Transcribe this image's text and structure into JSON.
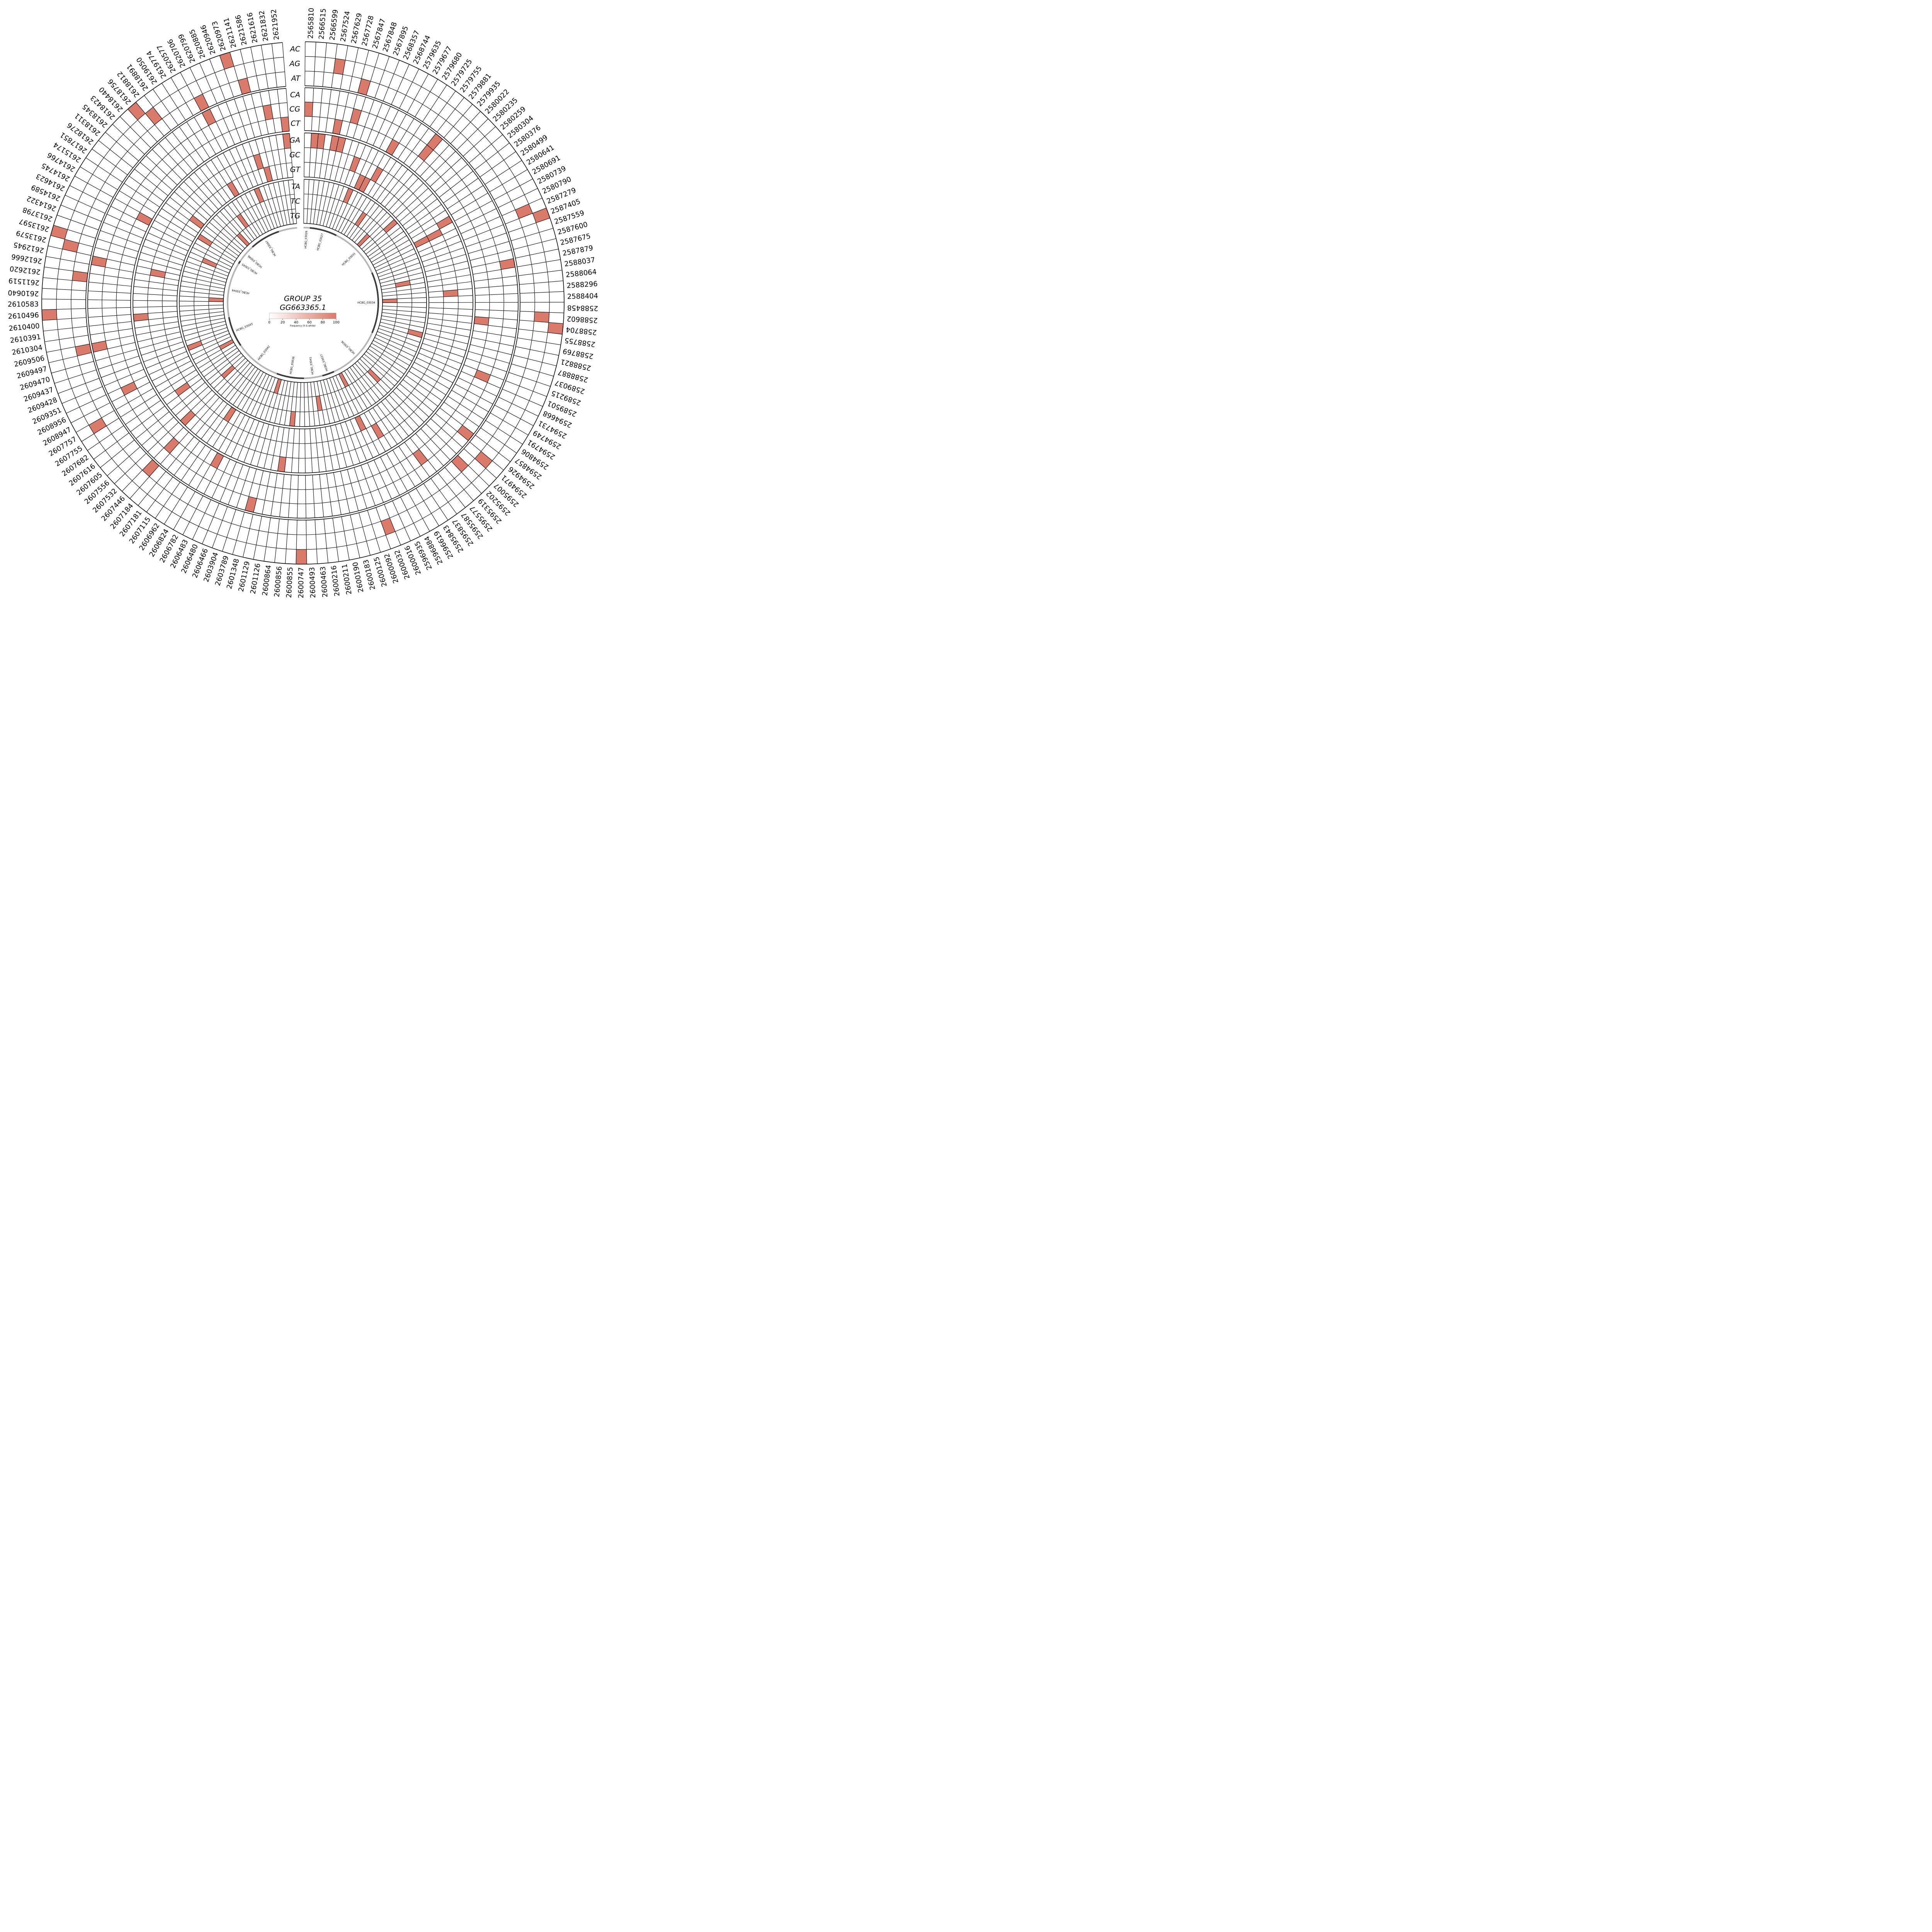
{
  "chart_data": {
    "type": "heatmap",
    "layout": "circular",
    "title": "GROUP 35",
    "subtitle": "GG663365.1",
    "colorbar": {
      "caption": "Frequency (0 is white)",
      "ticks": [
        "0",
        "20",
        "40",
        "60",
        "80",
        "100"
      ],
      "min": 0,
      "max": 100,
      "color_low": "#ffffff",
      "color_high": "#d97a6a"
    },
    "cell_color": "#d97a6a",
    "groups": [
      [
        "AC",
        "AG",
        "AT"
      ],
      [
        "CA",
        "CG",
        "CT"
      ],
      [
        "GA",
        "GC",
        "GT"
      ],
      [
        "TA",
        "TC",
        "TG"
      ]
    ],
    "positions": [
      "2565810",
      "2566515",
      "2566599",
      "2567524",
      "2567629",
      "2567728",
      "2567847",
      "2567848",
      "2567895",
      "2568357",
      "2568744",
      "2579635",
      "2579677",
      "2579680",
      "2579725",
      "2579755",
      "2579881",
      "2579935",
      "2580022",
      "2580235",
      "2580259",
      "2580304",
      "2580376",
      "2580499",
      "2580641",
      "2580691",
      "2580739",
      "2580790",
      "2587279",
      "2587405",
      "2587559",
      "2587600",
      "2587675",
      "2587879",
      "2588037",
      "2588064",
      "2588296",
      "2588404",
      "2588458",
      "2588602",
      "2588704",
      "2588755",
      "2588769",
      "2588821",
      "2588887",
      "2589037",
      "2589215",
      "2589501",
      "2594668",
      "2594731",
      "2594749",
      "2594791",
      "2594806",
      "2594857",
      "2594926",
      "2594971",
      "2595007",
      "2595202",
      "2595319",
      "2595577",
      "2595587",
      "2595837",
      "2595843",
      "2596619",
      "2596884",
      "2596935",
      "2600016",
      "2600032",
      "2600092",
      "2600125",
      "2600183",
      "2600190",
      "2600211",
      "2600216",
      "2600463",
      "2600493",
      "2600747",
      "2600855",
      "2600856",
      "2600864",
      "2601126",
      "2601129",
      "2601348",
      "2603789",
      "2603904",
      "2606466",
      "2606480",
      "2606483",
      "2606782",
      "2606824",
      "2606962",
      "2607115",
      "2607181",
      "2607184",
      "2607446",
      "2607532",
      "2607556",
      "2607605",
      "2607616",
      "2607682",
      "2607755",
      "2607757",
      "2608947",
      "2608956",
      "2609351",
      "2609428",
      "2609437",
      "2609470",
      "2609497",
      "2609506",
      "2610304",
      "2610391",
      "2610400",
      "2610496",
      "2610583",
      "2610640",
      "2611519",
      "2612620",
      "2612666",
      "2612945",
      "2613579",
      "2613597",
      "2613798",
      "2614322",
      "2614589",
      "2614623",
      "2614745",
      "2614766",
      "2615174",
      "2617851",
      "2618276",
      "2618311",
      "2618345",
      "2618423",
      "2618440",
      "2618756",
      "2618812",
      "2618891",
      "2619050",
      "2619774",
      "2620577",
      "2620706",
      "2620799",
      "2620885",
      "2620946",
      "2620973",
      "2621141",
      "2621586",
      "2621616",
      "2621832",
      "2621952"
    ],
    "genes": [
      {
        "name": "HCBG_03026",
        "start": 0,
        "end": 2,
        "shade": "light"
      },
      {
        "name": "HCBG_03027",
        "start": 2,
        "end": 11,
        "shade": "dark"
      },
      {
        "name": "HCBG_03031",
        "start": 11,
        "end": 28,
        "shade": "light"
      },
      {
        "name": "HCBG_03034",
        "start": 28,
        "end": 48,
        "shade": "dark"
      },
      {
        "name": "HCBG_03036",
        "start": 48,
        "end": 66,
        "shade": "light"
      },
      {
        "name": "HCBG_03037",
        "start": 66,
        "end": 70,
        "shade": "dark"
      },
      {
        "name": "HCBG_03041",
        "start": 70,
        "end": 76,
        "shade": "light"
      },
      {
        "name": "HCBG_03038",
        "start": 76,
        "end": 85,
        "shade": "dark"
      },
      {
        "name": "HCBG_03042",
        "start": 85,
        "end": 100,
        "shade": "light"
      },
      {
        "name": "HCBG_03043",
        "start": 100,
        "end": 110,
        "shade": "dark"
      },
      {
        "name": "HCBG_03044",
        "start": 110,
        "end": 128,
        "shade": "light"
      },
      {
        "name": "HCBG_03045",
        "start": 128,
        "end": 129,
        "shade": "dark"
      },
      {
        "name": "HCBG_03046",
        "start": 129,
        "end": 135,
        "shade": "light"
      },
      {
        "name": "HCBG_03047",
        "start": 135,
        "end": 145,
        "shade": "dark"
      },
      {
        "name": "",
        "start": 145,
        "end": 151,
        "shade": "light"
      }
    ],
    "cells": [
      [
        "AG",
        3,
        100
      ],
      [
        "AT",
        6,
        100
      ],
      [
        "AT",
        57,
        100
      ],
      [
        "AT",
        94,
        100
      ],
      [
        "AT",
        109,
        100
      ],
      [
        "AT",
        117,
        100
      ],
      [
        "AT",
        141,
        100
      ],
      [
        "AT",
        146,
        100
      ],
      [
        "AG",
        28,
        100
      ],
      [
        "AG",
        39,
        100
      ],
      [
        "AG",
        55,
        100
      ],
      [
        "AG",
        67,
        100
      ],
      [
        "AG",
        101,
        100
      ],
      [
        "AG",
        120,
        100
      ],
      [
        "AG",
        136,
        100
      ],
      [
        "AC",
        29,
        100
      ],
      [
        "AC",
        40,
        100
      ],
      [
        "AC",
        76,
        100
      ],
      [
        "AC",
        113,
        100
      ],
      [
        "AC",
        121,
        100
      ],
      [
        "AC",
        135,
        100
      ],
      [
        "AC",
        145,
        100
      ],
      [
        "CG",
        0,
        100
      ],
      [
        "CG",
        6,
        100
      ],
      [
        "CG",
        16,
        100
      ],
      [
        "CG",
        47,
        100
      ],
      [
        "CG",
        60,
        100
      ],
      [
        "CG",
        94,
        100
      ],
      [
        "CG",
        103,
        100
      ],
      [
        "CG",
        148,
        100
      ],
      [
        "CT",
        4,
        100
      ],
      [
        "CT",
        12,
        100
      ],
      [
        "CT",
        40,
        100
      ],
      [
        "CT",
        88,
        100
      ],
      [
        "CT",
        126,
        100
      ],
      [
        "CT",
        150,
        100
      ],
      [
        "CA",
        16,
        100
      ],
      [
        "CA",
        33,
        100
      ],
      [
        "CA",
        54,
        100
      ],
      [
        "CA",
        82,
        100
      ],
      [
        "CA",
        109,
        100
      ],
      [
        "CA",
        119,
        100
      ],
      [
        "CA",
        141,
        100
      ],
      [
        "GA",
        1,
        100
      ],
      [
        "GA",
        2,
        100
      ],
      [
        "GA",
        4,
        100
      ],
      [
        "GA",
        5,
        100
      ],
      [
        "GA",
        25,
        100
      ],
      [
        "GA",
        79,
        100
      ],
      [
        "GA",
        95,
        100
      ],
      [
        "GA",
        112,
        100
      ],
      [
        "GA",
        150,
        100
      ],
      [
        "GC",
        8,
        100
      ],
      [
        "GC",
        12,
        100
      ],
      [
        "GC",
        26,
        100
      ],
      [
        "GC",
        36,
        100
      ],
      [
        "GC",
        63,
        100
      ],
      [
        "GC",
        99,
        100
      ],
      [
        "GC",
        119,
        100
      ],
      [
        "GC",
        145,
        100
      ],
      [
        "GT",
        10,
        100
      ],
      [
        "GT",
        11,
        100
      ],
      [
        "GT",
        26,
        100
      ],
      [
        "GT",
        65,
        100
      ],
      [
        "GT",
        90,
        100
      ],
      [
        "GT",
        130,
        100
      ],
      [
        "GT",
        139,
        100
      ],
      [
        "GT",
        146,
        100
      ],
      [
        "TA",
        9,
        100
      ],
      [
        "TA",
        20,
        100
      ],
      [
        "TA",
        44,
        100
      ],
      [
        "TA",
        78,
        100
      ],
      [
        "TA",
        105,
        100
      ],
      [
        "TA",
        128,
        100
      ],
      [
        "TA",
        143,
        100
      ],
      [
        "TC",
        14,
        100
      ],
      [
        "TC",
        33,
        100
      ],
      [
        "TC",
        57,
        100
      ],
      [
        "TC",
        72,
        100
      ],
      [
        "TC",
        96,
        100
      ],
      [
        "TC",
        124,
        100
      ],
      [
        "TC",
        137,
        100
      ],
      [
        "TG",
        18,
        100
      ],
      [
        "TG",
        37,
        100
      ],
      [
        "TG",
        64,
        100
      ],
      [
        "TG",
        83,
        100
      ],
      [
        "TG",
        102,
        100
      ],
      [
        "TG",
        115,
        100
      ],
      [
        "TG",
        134,
        100
      ]
    ]
  }
}
